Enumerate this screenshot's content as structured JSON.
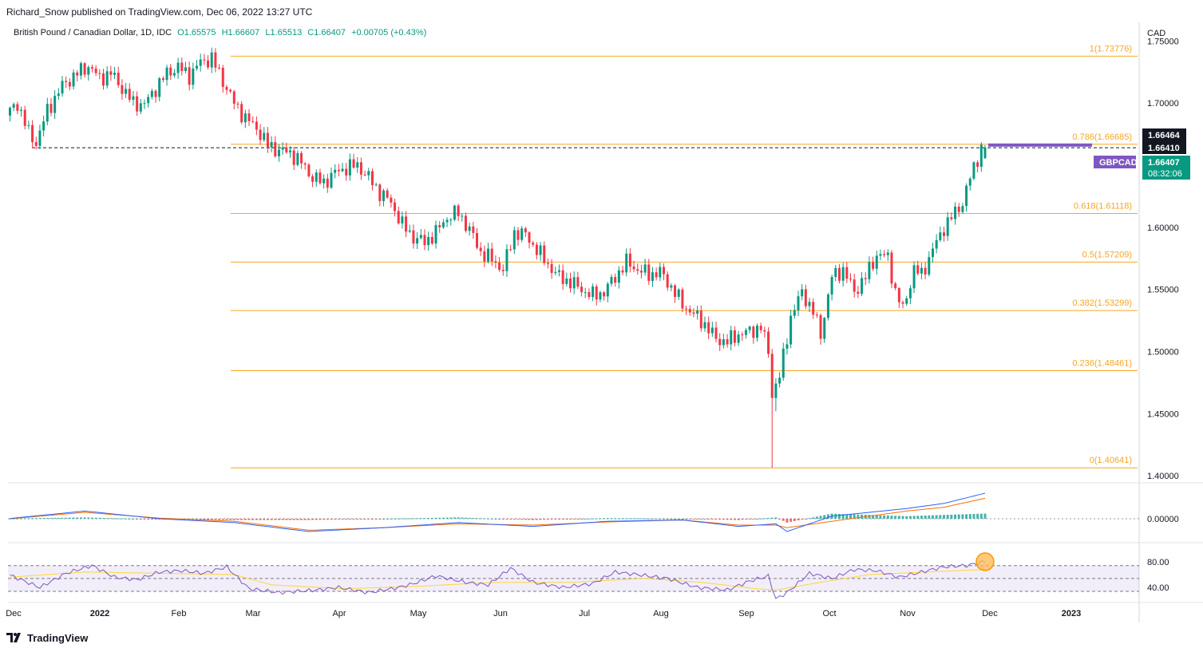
{
  "publisher": "Richard_Snow published on TradingView.com, Dec 06, 2022 13:27 UTC",
  "legend": {
    "symbol": "British Pound / Canadian Dollar, 1D, IDC",
    "open": "O1.65575",
    "high": "H1.66607",
    "low": "L1.65513",
    "close": "C1.66407",
    "change": "+0.00705 (+0.43%)"
  },
  "currency": "CAD",
  "price_labels": {
    "high_box": "1.66464",
    "low_box": "1.66410",
    "symbol_tag": "GBPCAD",
    "last_price": "1.66407",
    "countdown": "08:32:06"
  },
  "macd_label": "0.00000",
  "footer": {
    "brand": "TradingView"
  },
  "colors": {
    "up": "#089981",
    "down": "#f23645",
    "fib": "#f5a623",
    "macd": "#2962ff",
    "signal": "#ff6d00",
    "rsi": "#7e57c2",
    "rsi_ma": "#fdd835",
    "price_tag": "#089981",
    "sym_tag": "#7e57c2"
  },
  "chart_data": [
    {
      "type": "candlestick",
      "title": "British Pound / Canadian Dollar, 1D, IDC",
      "x_ticks": [
        "Dec",
        "2022",
        "Feb",
        "Mar",
        "Apr",
        "May",
        "Jun",
        "Jul",
        "Aug",
        "Sep",
        "Oct",
        "Nov",
        "Dec",
        "2023"
      ],
      "y_ticks": [
        "1.75000",
        "1.70000",
        "1.65000",
        "1.60000",
        "1.55000",
        "1.50000",
        "1.45000",
        "1.40000"
      ],
      "ylim": [
        1.395,
        1.765
      ],
      "fib_levels": [
        {
          "label": "1(1.73776)",
          "value": 1.73776
        },
        {
          "label": "0.786(1.66685)",
          "value": 1.66685
        },
        {
          "label": "0.618(1.61118)",
          "value": 1.61118
        },
        {
          "label": "0.5(1.57209)",
          "value": 1.57209
        },
        {
          "label": "0.382(1.53299)",
          "value": 1.53299
        },
        {
          "label": "0.236(1.48461)",
          "value": 1.48461
        },
        {
          "label": "0(1.40641)",
          "value": 1.40641
        }
      ],
      "anchors": [
        [
          0,
          1.69
        ],
        [
          3,
          1.7
        ],
        [
          6,
          1.676
        ],
        [
          8,
          1.668
        ],
        [
          11,
          1.694
        ],
        [
          15,
          1.714
        ],
        [
          19,
          1.724
        ],
        [
          22,
          1.73
        ],
        [
          25,
          1.72
        ],
        [
          28,
          1.724
        ],
        [
          31,
          1.712
        ],
        [
          34,
          1.7
        ],
        [
          37,
          1.699
        ],
        [
          40,
          1.712
        ],
        [
          43,
          1.724
        ],
        [
          46,
          1.729
        ],
        [
          49,
          1.722
        ],
        [
          52,
          1.733
        ],
        [
          55,
          1.736
        ],
        [
          58,
          1.718
        ],
        [
          61,
          1.7
        ],
        [
          64,
          1.688
        ],
        [
          67,
          1.68
        ],
        [
          70,
          1.666
        ],
        [
          73,
          1.662
        ],
        [
          76,
          1.66
        ],
        [
          79,
          1.652
        ],
        [
          82,
          1.64
        ],
        [
          85,
          1.636
        ],
        [
          88,
          1.644
        ],
        [
          91,
          1.648
        ],
        [
          94,
          1.65
        ],
        [
          97,
          1.64
        ],
        [
          100,
          1.628
        ],
        [
          103,
          1.62
        ],
        [
          106,
          1.602
        ],
        [
          109,
          1.592
        ],
        [
          112,
          1.588
        ],
        [
          115,
          1.596
        ],
        [
          118,
          1.608
        ],
        [
          121,
          1.612
        ],
        [
          124,
          1.598
        ],
        [
          127,
          1.58
        ],
        [
          130,
          1.574
        ],
        [
          133,
          1.566
        ],
        [
          136,
          1.596
        ],
        [
          139,
          1.594
        ],
        [
          142,
          1.582
        ],
        [
          145,
          1.57
        ],
        [
          148,
          1.56
        ],
        [
          151,
          1.556
        ],
        [
          154,
          1.55
        ],
        [
          157,
          1.545
        ],
        [
          160,
          1.548
        ],
        [
          163,
          1.56
        ],
        [
          166,
          1.572
        ],
        [
          169,
          1.566
        ],
        [
          172,
          1.562
        ],
        [
          175,
          1.564
        ],
        [
          178,
          1.552
        ],
        [
          181,
          1.538
        ],
        [
          184,
          1.53
        ],
        [
          187,
          1.522
        ],
        [
          190,
          1.51
        ],
        [
          193,
          1.508
        ],
        [
          196,
          1.514
        ],
        [
          199,
          1.516
        ],
        [
          202,
          1.52
        ],
        [
          204,
          1.5
        ],
        [
          205,
          1.466
        ],
        [
          207,
          1.48
        ],
        [
          210,
          1.528
        ],
        [
          213,
          1.548
        ],
        [
          216,
          1.532
        ],
        [
          218,
          1.514
        ],
        [
          221,
          1.56
        ],
        [
          224,
          1.566
        ],
        [
          227,
          1.548
        ],
        [
          230,
          1.56
        ],
        [
          233,
          1.578
        ],
        [
          236,
          1.576
        ],
        [
          238,
          1.548
        ],
        [
          240,
          1.534
        ],
        [
          243,
          1.566
        ],
        [
          245,
          1.562
        ],
        [
          248,
          1.582
        ],
        [
          251,
          1.6
        ],
        [
          254,
          1.612
        ],
        [
          256,
          1.62
        ],
        [
          258,
          1.64
        ],
        [
          260,
          1.656
        ],
        [
          261,
          1.6641
        ]
      ],
      "last_candle": {
        "open": 1.65575,
        "high": 1.66607,
        "low": 1.65513,
        "close": 1.66407
      }
    },
    {
      "type": "macd",
      "zero_label": "0.00000",
      "macd": [
        [
          0,
          0.0002
        ],
        [
          20,
          0.006
        ],
        [
          40,
          0.0
        ],
        [
          60,
          -0.003
        ],
        [
          80,
          -0.01
        ],
        [
          100,
          -0.007
        ],
        [
          120,
          -0.003
        ],
        [
          140,
          -0.006
        ],
        [
          160,
          -0.002
        ],
        [
          180,
          -0.001
        ],
        [
          195,
          -0.006
        ],
        [
          205,
          -0.004
        ],
        [
          208,
          -0.01
        ],
        [
          220,
          0.002
        ],
        [
          240,
          0.008
        ],
        [
          250,
          0.012
        ],
        [
          261,
          0.02
        ]
      ],
      "signal": [
        [
          0,
          0.0
        ],
        [
          20,
          0.005
        ],
        [
          40,
          0.0005
        ],
        [
          60,
          -0.002
        ],
        [
          80,
          -0.009
        ],
        [
          100,
          -0.007
        ],
        [
          120,
          -0.004
        ],
        [
          140,
          -0.005
        ],
        [
          160,
          -0.0025
        ],
        [
          180,
          -0.001
        ],
        [
          195,
          -0.005
        ],
        [
          205,
          -0.005
        ],
        [
          208,
          -0.007
        ],
        [
          220,
          -0.002
        ],
        [
          240,
          0.006
        ],
        [
          250,
          0.009
        ],
        [
          261,
          0.016
        ]
      ]
    },
    {
      "type": "rsi",
      "y_ticks": [
        "80.00",
        "40.00"
      ],
      "bands": [
        70,
        50,
        30
      ],
      "rsi": [
        [
          0,
          55
        ],
        [
          8,
          36
        ],
        [
          15,
          58
        ],
        [
          22,
          70
        ],
        [
          28,
          52
        ],
        [
          34,
          48
        ],
        [
          40,
          60
        ],
        [
          46,
          62
        ],
        [
          52,
          58
        ],
        [
          58,
          68
        ],
        [
          64,
          34
        ],
        [
          72,
          28
        ],
        [
          82,
          32
        ],
        [
          88,
          36
        ],
        [
          96,
          28
        ],
        [
          104,
          36
        ],
        [
          108,
          42
        ],
        [
          114,
          54
        ],
        [
          122,
          44
        ],
        [
          128,
          40
        ],
        [
          134,
          66
        ],
        [
          140,
          44
        ],
        [
          148,
          36
        ],
        [
          156,
          42
        ],
        [
          162,
          60
        ],
        [
          168,
          56
        ],
        [
          176,
          50
        ],
        [
          184,
          36
        ],
        [
          192,
          32
        ],
        [
          198,
          46
        ],
        [
          203,
          54
        ],
        [
          205,
          18
        ],
        [
          208,
          28
        ],
        [
          214,
          58
        ],
        [
          220,
          50
        ],
        [
          226,
          64
        ],
        [
          232,
          62
        ],
        [
          238,
          52
        ],
        [
          244,
          60
        ],
        [
          250,
          68
        ],
        [
          256,
          70
        ],
        [
          261,
          76
        ]
      ],
      "rsi_ma": [
        [
          0,
          52
        ],
        [
          20,
          60
        ],
        [
          40,
          58
        ],
        [
          60,
          56
        ],
        [
          70,
          40
        ],
        [
          90,
          34
        ],
        [
          110,
          38
        ],
        [
          130,
          44
        ],
        [
          150,
          44
        ],
        [
          170,
          50
        ],
        [
          185,
          44
        ],
        [
          200,
          34
        ],
        [
          205,
          32
        ],
        [
          215,
          42
        ],
        [
          230,
          56
        ],
        [
          245,
          60
        ],
        [
          261,
          64
        ]
      ],
      "highlight": "circle on latest RSI reading"
    }
  ]
}
